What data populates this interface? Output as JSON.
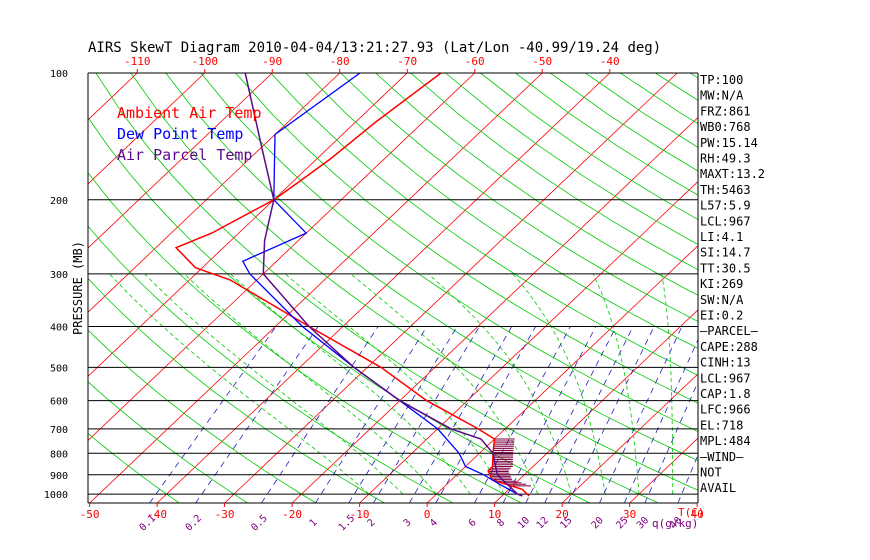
{
  "chart_data": {
    "type": "line",
    "title": "AIRS SkewT Diagram 2010-04-04/13:21:27.93 (Lat/Lon -40.99/19.24 deg)",
    "ylabel": "PRESSURE (MB)",
    "xlabel_unit": "T(C)",
    "mixing_ratio_unit": "q(g/kg)",
    "top_ticks": [
      "-120",
      "-110",
      "-100",
      "-90",
      "-80",
      "-70",
      "-60",
      "-50",
      "-40"
    ],
    "bottom_ticks": [
      "-50",
      "-40",
      "-30",
      "-20",
      "-10",
      "0",
      "10",
      "20",
      "30",
      "40"
    ],
    "pressure_ticks": [
      "100",
      "200",
      "300",
      "400",
      "500",
      "600",
      "700",
      "800",
      "900",
      "1000"
    ],
    "mixing_ratio_ticks": [
      "0.1",
      "0.2",
      "0.5",
      "1",
      "1.5",
      "2",
      "3",
      "4",
      "6",
      "8",
      "10",
      "12",
      "15",
      "20",
      "25",
      "30",
      "40"
    ],
    "ylim": [
      1050,
      100
    ],
    "xlim_bottom": [
      -50,
      40
    ],
    "log_pressure": true,
    "legend": [
      {
        "label": "Ambient Air Temp",
        "color": "#ff0000"
      },
      {
        "label": "Dew Point Temp",
        "color": "#0000ff"
      },
      {
        "label": "Air Parcel Temp",
        "color": "#5a0a8a"
      }
    ],
    "series": [
      {
        "name": "Ambient Air Temp",
        "color": "#ff0000",
        "p": [
          100,
          130,
          160,
          180,
          200,
          240,
          260,
          290,
          310,
          400,
          500,
          600,
          700,
          740,
          800,
          860,
          880,
          925,
          975,
          1010
        ],
        "t": [
          -65,
          -67,
          -68,
          -69,
          -70,
          -74,
          -77,
          -71,
          -64,
          -45,
          -28,
          -16,
          -4,
          0,
          2,
          4,
          4,
          6,
          12,
          14
        ]
      },
      {
        "name": "Dew Point Temp",
        "color": "#0000ff",
        "p": [
          100,
          140,
          200,
          240,
          280,
          300,
          400,
          500,
          600,
          700,
          800,
          860,
          900,
          950,
          1000,
          1010
        ],
        "t": [
          -77,
          -80,
          -70,
          -60,
          -65,
          -62,
          -46,
          -32,
          -20,
          -10,
          -3,
          0,
          4,
          8,
          12,
          13
        ]
      },
      {
        "name": "Air Parcel Temp",
        "color": "#5a0a8a",
        "p": [
          100,
          150,
          200,
          250,
          300,
          400,
          500,
          600,
          700,
          740,
          800,
          900,
          1000,
          1010
        ],
        "t": [
          -94,
          -80,
          -70,
          -65,
          -60,
          -45,
          -32,
          -20,
          -8,
          -2,
          2,
          6,
          12,
          13
        ]
      }
    ]
  },
  "indices": [
    "TP:100",
    "MW:N/A",
    "FRZ:861",
    "WB0:768",
    "PW:15.14",
    "RH:49.3",
    "MAXT:13.2",
    "TH:5463",
    "L57:5.9",
    "LCL:967",
    "LI:4.1",
    "SI:14.7",
    "TT:30.5",
    "KI:269",
    "SW:N/A",
    "EI:0.2",
    "—PARCEL—",
    "CAPE:288",
    "CINH:13",
    "LCL:967",
    "CAP:1.8",
    "LFC:966",
    "EL:718",
    "MPL:484",
    "—WIND—",
    "NOT",
    "AVAIL"
  ],
  "colors": {
    "frame": "#000000",
    "isotherm": "#ff0000",
    "dry_adiabat": "#00c800",
    "moist_adiabat": "#00c800",
    "mixing_ratio": "#2020c0",
    "tick_red": "#ff0000",
    "tick_purple": "#800080",
    "hatch": "#800040"
  }
}
